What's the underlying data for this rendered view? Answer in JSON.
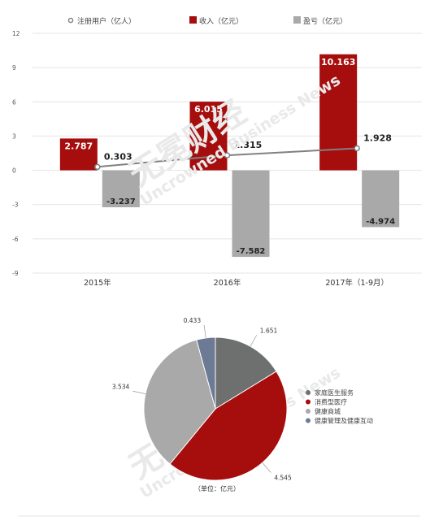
{
  "chart_data": [
    {
      "type": "bar",
      "title": "",
      "xlabel": "",
      "ylabel": "",
      "categories": [
        "2015年",
        "2016年",
        "2017年（1-9月）"
      ],
      "ylim": [
        -9,
        12
      ],
      "yticks": [
        12,
        9,
        6,
        3,
        0,
        -3,
        -6,
        -9
      ],
      "grid": true,
      "legend_position": "top",
      "series": [
        {
          "name": "收入（亿元）",
          "kind": "bar",
          "color": "#a60d0d",
          "values": [
            2.787,
            6.015,
            10.163
          ]
        },
        {
          "name": "盈亏（亿元）",
          "kind": "bar",
          "color": "#a9a9a9",
          "values": [
            -3.237,
            -7.582,
            -4.974
          ]
        },
        {
          "name": "注册用户（亿人）",
          "kind": "line",
          "color": "#808080",
          "values": [
            0.303,
            1.315,
            1.928
          ]
        }
      ]
    },
    {
      "type": "pie",
      "title": "",
      "legend_position": "right",
      "note": "（单位：亿元）",
      "slices": [
        {
          "name": "家庭医生服务",
          "value": 1.651,
          "color": "#6d706f"
        },
        {
          "name": "消费型医疗",
          "value": 4.545,
          "color": "#a60d0d"
        },
        {
          "name": "健康商城",
          "value": 3.534,
          "color": "#a9a9a9"
        },
        {
          "name": "健康管理及健康互动",
          "value": 0.433,
          "color": "#6c7a96"
        }
      ]
    }
  ],
  "watermark": {
    "brand": "无冕财经",
    "english": "Uncrowned Business News"
  }
}
